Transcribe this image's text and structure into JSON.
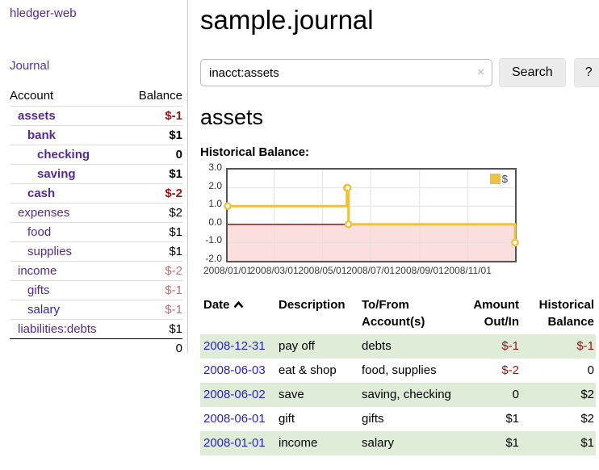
{
  "colors": {
    "link_purple": "#552a93",
    "link_purple_blue": "#4a35bd",
    "link_blue": "#2823cc",
    "negative_strong": "#951616",
    "negative_muted": "#bb7272",
    "row_green": "#deecd8",
    "button_bg": "#ececec",
    "chart_line": "#edc240",
    "chart_negative_fill": "#fbdede",
    "chart_zero_line": "#8b0000",
    "chart_grid": "#e0e0e0"
  },
  "sidebar": {
    "app_title": "hledger-web",
    "nav": {
      "journal": "Journal"
    },
    "accounts": {
      "headers": {
        "account": "Account",
        "balance": "Balance"
      },
      "rows": [
        {
          "account": "assets",
          "balance": "$-1",
          "level": 1,
          "emphasis": true,
          "tone": "neg"
        },
        {
          "account": "bank",
          "balance": "$1",
          "level": 2,
          "emphasis": true,
          "tone": ""
        },
        {
          "account": "checking",
          "balance": "0",
          "level": 3,
          "emphasis": true,
          "tone": ""
        },
        {
          "account": "saving",
          "balance": "$1",
          "level": 3,
          "emphasis": true,
          "tone": ""
        },
        {
          "account": "cash",
          "balance": "$-2",
          "level": 2,
          "emphasis": true,
          "tone": "neg"
        },
        {
          "account": "expenses",
          "balance": "$2",
          "level": 1,
          "emphasis": false,
          "tone": ""
        },
        {
          "account": "food",
          "balance": "$1",
          "level": 2,
          "emphasis": false,
          "tone": ""
        },
        {
          "account": "supplies",
          "balance": "$1",
          "level": 2,
          "emphasis": false,
          "tone": ""
        },
        {
          "account": "income",
          "balance": "$-2",
          "level": 1,
          "emphasis": false,
          "tone": "dim"
        },
        {
          "account": "gifts",
          "balance": "$-1",
          "level": 2,
          "emphasis": false,
          "tone": "dim"
        },
        {
          "account": "salary",
          "balance": "$-1",
          "level": 2,
          "emphasis": false,
          "tone": "dim",
          "link_color": "blue"
        },
        {
          "account": "liabilities:debts",
          "balance": "$1",
          "level": 1,
          "emphasis": false,
          "tone": ""
        }
      ],
      "total": "0"
    }
  },
  "main": {
    "title": "sample.journal",
    "search": {
      "value": "inacct:assets",
      "clear_icon": "×",
      "search_button": "Search",
      "help_button": "?"
    },
    "account_heading": "assets",
    "section_label": "Historical Balance:"
  },
  "chart_data": {
    "type": "line",
    "step": true,
    "title": "Historical Balance:",
    "series": [
      {
        "name": "$",
        "color": "#edc240",
        "points": [
          [
            "2008-01-01",
            1
          ],
          [
            "2008-06-01",
            2
          ],
          [
            "2008-06-02",
            2
          ],
          [
            "2008-06-03",
            0
          ],
          [
            "2008-12-31",
            -1
          ]
        ]
      }
    ],
    "x_ticks": [
      "2008/01/01",
      "2008/03/01",
      "2008/05/01",
      "2008/07/01",
      "2008/09/01",
      "2008/11/01"
    ],
    "y_ticks": [
      "3.0",
      "2.0",
      "1.0",
      "0.0",
      "-1.0",
      "-2.0"
    ],
    "ylim": [
      -2,
      3
    ],
    "x_range": [
      "2008-01-01",
      "2008-12-31"
    ],
    "grid": true,
    "legend_position": "top-right",
    "negative_region_fill": "#fbdede",
    "zero_line_color": "#8b0000"
  },
  "register": {
    "headers": {
      "date": "Date",
      "description": "Description",
      "accounts": "To/From Account(s)",
      "amount": "Amount Out/In",
      "balance": "Historical Balance"
    },
    "sort": {
      "column": "date",
      "direction": "ascending"
    },
    "rows": [
      {
        "date": "2008-12-31",
        "description": "pay off",
        "accounts": "debts",
        "amount": "$-1",
        "amount_tone": "neg",
        "balance": "$-1",
        "balance_tone": "neg"
      },
      {
        "date": "2008-06-03",
        "description": "eat & shop",
        "accounts": "food, supplies",
        "amount": "$-2",
        "amount_tone": "neg",
        "balance": "0",
        "balance_tone": ""
      },
      {
        "date": "2008-06-02",
        "description": "save",
        "accounts": "saving, checking",
        "amount": "0",
        "amount_tone": "",
        "balance": "$2",
        "balance_tone": ""
      },
      {
        "date": "2008-06-01",
        "description": "gift",
        "accounts": "gifts",
        "amount": "$1",
        "amount_tone": "",
        "balance": "$2",
        "balance_tone": ""
      },
      {
        "date": "2008-01-01",
        "description": "income",
        "accounts": "salary",
        "amount": "$1",
        "amount_tone": "",
        "balance": "$1",
        "balance_tone": ""
      }
    ]
  }
}
